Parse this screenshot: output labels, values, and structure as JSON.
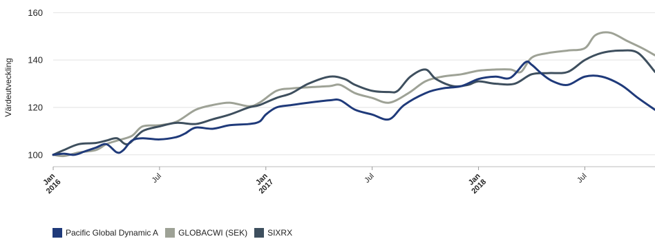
{
  "chart_data": {
    "type": "line",
    "ylabel": "Värdeutveckling",
    "ylim": [
      95,
      163
    ],
    "y_ticks": [
      100,
      120,
      140,
      160
    ],
    "x_range": [
      2016.0,
      2018.83
    ],
    "x_ticks": [
      {
        "x": 2016.0,
        "lines": [
          "Jan",
          "2016"
        ]
      },
      {
        "x": 2016.5,
        "lines": [
          "Jul"
        ]
      },
      {
        "x": 2017.0,
        "lines": [
          "Jan",
          "2017"
        ]
      },
      {
        "x": 2017.5,
        "lines": [
          "Jul"
        ]
      },
      {
        "x": 2018.0,
        "lines": [
          "Jan",
          "2018"
        ]
      },
      {
        "x": 2018.5,
        "lines": [
          "Jul"
        ]
      }
    ],
    "grid": "horizontal",
    "legend_position": "bottom-left",
    "series": [
      {
        "name": "Pacific Global Dynamic A",
        "color": "#1f3a7a",
        "points": [
          [
            2016.0,
            100
          ],
          [
            2016.05,
            100.5
          ],
          [
            2016.1,
            100
          ],
          [
            2016.15,
            101.5
          ],
          [
            2016.2,
            103
          ],
          [
            2016.25,
            104.5
          ],
          [
            2016.3,
            101
          ],
          [
            2016.33,
            102
          ],
          [
            2016.37,
            106
          ],
          [
            2016.42,
            107
          ],
          [
            2016.5,
            106.5
          ],
          [
            2016.58,
            107.5
          ],
          [
            2016.62,
            109
          ],
          [
            2016.67,
            111.5
          ],
          [
            2016.75,
            111
          ],
          [
            2016.83,
            112.5
          ],
          [
            2016.92,
            113
          ],
          [
            2016.97,
            114
          ],
          [
            2017.0,
            117
          ],
          [
            2017.05,
            120
          ],
          [
            2017.12,
            121
          ],
          [
            2017.2,
            122
          ],
          [
            2017.3,
            123
          ],
          [
            2017.35,
            123
          ],
          [
            2017.42,
            119
          ],
          [
            2017.5,
            117
          ],
          [
            2017.58,
            115
          ],
          [
            2017.65,
            121
          ],
          [
            2017.75,
            126
          ],
          [
            2017.83,
            128
          ],
          [
            2017.92,
            129
          ],
          [
            2018.0,
            132
          ],
          [
            2018.08,
            133
          ],
          [
            2018.15,
            132.5
          ],
          [
            2018.22,
            139
          ],
          [
            2018.25,
            138
          ],
          [
            2018.3,
            134
          ],
          [
            2018.35,
            131
          ],
          [
            2018.42,
            129.5
          ],
          [
            2018.5,
            133
          ],
          [
            2018.58,
            133
          ],
          [
            2018.67,
            129.5
          ],
          [
            2018.75,
            124
          ],
          [
            2018.83,
            119
          ]
        ]
      },
      {
        "name": "GLOBACWI (SEK)",
        "color": "#9ea296",
        "points": [
          [
            2016.0,
            100
          ],
          [
            2016.05,
            99.5
          ],
          [
            2016.12,
            101
          ],
          [
            2016.2,
            102
          ],
          [
            2016.25,
            104.5
          ],
          [
            2016.3,
            106
          ],
          [
            2016.37,
            108
          ],
          [
            2016.42,
            112
          ],
          [
            2016.5,
            112.5
          ],
          [
            2016.58,
            114
          ],
          [
            2016.67,
            119
          ],
          [
            2016.75,
            121
          ],
          [
            2016.83,
            122
          ],
          [
            2016.92,
            120.5
          ],
          [
            2016.97,
            122
          ],
          [
            2017.05,
            127
          ],
          [
            2017.12,
            128
          ],
          [
            2017.2,
            128.5
          ],
          [
            2017.3,
            129
          ],
          [
            2017.35,
            129.5
          ],
          [
            2017.42,
            126
          ],
          [
            2017.5,
            124
          ],
          [
            2017.58,
            122
          ],
          [
            2017.67,
            126
          ],
          [
            2017.75,
            131
          ],
          [
            2017.83,
            133
          ],
          [
            2017.92,
            134
          ],
          [
            2018.0,
            135.5
          ],
          [
            2018.08,
            136
          ],
          [
            2018.15,
            136
          ],
          [
            2018.2,
            135
          ],
          [
            2018.25,
            141
          ],
          [
            2018.33,
            143
          ],
          [
            2018.42,
            144
          ],
          [
            2018.5,
            145
          ],
          [
            2018.55,
            150.5
          ],
          [
            2018.62,
            151.5
          ],
          [
            2018.7,
            148
          ],
          [
            2018.77,
            145
          ],
          [
            2018.83,
            142
          ]
        ]
      },
      {
        "name": "SIXRX",
        "color": "#3e4f5e",
        "points": [
          [
            2016.0,
            100
          ],
          [
            2016.05,
            102
          ],
          [
            2016.12,
            104.5
          ],
          [
            2016.2,
            105
          ],
          [
            2016.25,
            106
          ],
          [
            2016.3,
            107
          ],
          [
            2016.35,
            104.5
          ],
          [
            2016.42,
            110
          ],
          [
            2016.5,
            112
          ],
          [
            2016.58,
            113.5
          ],
          [
            2016.67,
            113
          ],
          [
            2016.75,
            115
          ],
          [
            2016.83,
            117
          ],
          [
            2016.92,
            120
          ],
          [
            2016.97,
            121
          ],
          [
            2017.05,
            124
          ],
          [
            2017.12,
            126
          ],
          [
            2017.2,
            130
          ],
          [
            2017.3,
            133
          ],
          [
            2017.37,
            132
          ],
          [
            2017.42,
            129.5
          ],
          [
            2017.5,
            127
          ],
          [
            2017.58,
            126.5
          ],
          [
            2017.62,
            127
          ],
          [
            2017.68,
            133
          ],
          [
            2017.75,
            136
          ],
          [
            2017.8,
            132
          ],
          [
            2017.88,
            129
          ],
          [
            2017.95,
            129.5
          ],
          [
            2018.0,
            131
          ],
          [
            2018.08,
            130
          ],
          [
            2018.17,
            130
          ],
          [
            2018.25,
            134
          ],
          [
            2018.33,
            134.5
          ],
          [
            2018.42,
            135
          ],
          [
            2018.5,
            140
          ],
          [
            2018.58,
            143
          ],
          [
            2018.67,
            144
          ],
          [
            2018.75,
            143
          ],
          [
            2018.83,
            135
          ]
        ]
      }
    ]
  }
}
